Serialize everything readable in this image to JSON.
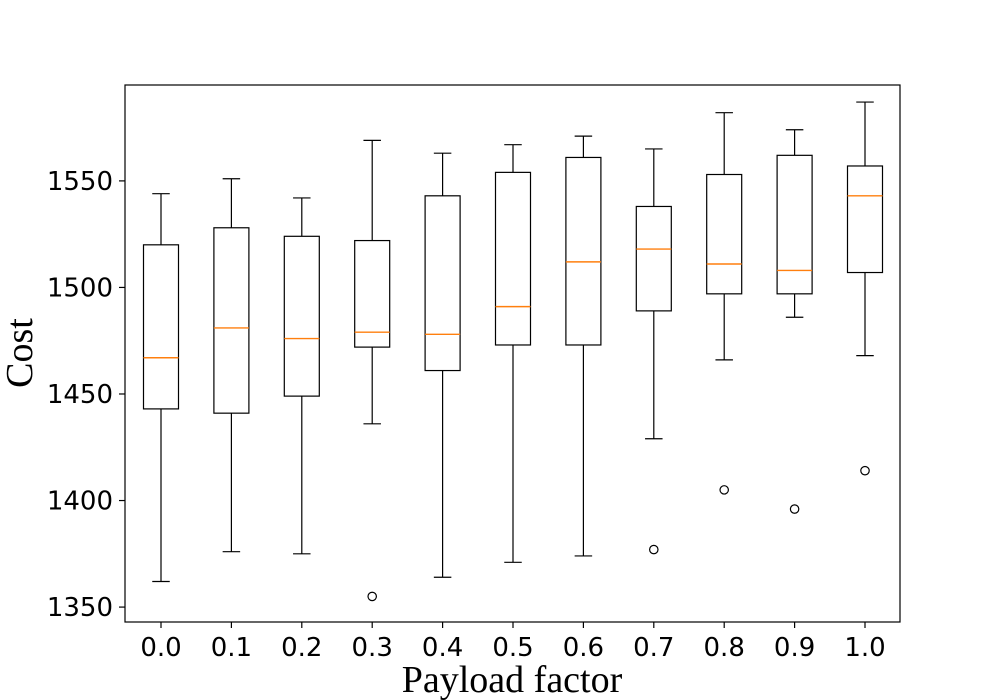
{
  "chart_data": {
    "type": "boxplot",
    "title": "",
    "xlabel": "Payload factor",
    "ylabel": "Cost",
    "ylim": [
      1343,
      1595
    ],
    "yticks": [
      1350,
      1400,
      1450,
      1500,
      1550
    ],
    "categories": [
      "0.0",
      "0.1",
      "0.2",
      "0.3",
      "0.4",
      "0.5",
      "0.6",
      "0.7",
      "0.8",
      "0.9",
      "1.0"
    ],
    "boxes": [
      {
        "whisker_low": 1362,
        "q1": 1443,
        "median": 1467,
        "q3": 1520,
        "whisker_high": 1544,
        "outliers": []
      },
      {
        "whisker_low": 1376,
        "q1": 1441,
        "median": 1481,
        "q3": 1528,
        "whisker_high": 1551,
        "outliers": []
      },
      {
        "whisker_low": 1375,
        "q1": 1449,
        "median": 1476,
        "q3": 1524,
        "whisker_high": 1542,
        "outliers": []
      },
      {
        "whisker_low": 1436,
        "q1": 1472,
        "median": 1479,
        "q3": 1522,
        "whisker_high": 1569,
        "outliers": [
          1355
        ]
      },
      {
        "whisker_low": 1364,
        "q1": 1461,
        "median": 1478,
        "q3": 1543,
        "whisker_high": 1563,
        "outliers": []
      },
      {
        "whisker_low": 1371,
        "q1": 1473,
        "median": 1491,
        "q3": 1554,
        "whisker_high": 1567,
        "outliers": []
      },
      {
        "whisker_low": 1374,
        "q1": 1473,
        "median": 1512,
        "q3": 1561,
        "whisker_high": 1571,
        "outliers": []
      },
      {
        "whisker_low": 1429,
        "q1": 1489,
        "median": 1518,
        "q3": 1538,
        "whisker_high": 1565,
        "outliers": [
          1377
        ]
      },
      {
        "whisker_low": 1466,
        "q1": 1497,
        "median": 1511,
        "q3": 1553,
        "whisker_high": 1582,
        "outliers": [
          1405
        ]
      },
      {
        "whisker_low": 1486,
        "q1": 1497,
        "median": 1508,
        "q3": 1562,
        "whisker_high": 1574,
        "outliers": [
          1396
        ]
      },
      {
        "whisker_low": 1468,
        "q1": 1507,
        "median": 1543,
        "q3": 1557,
        "whisker_high": 1587,
        "outliers": [
          1414
        ]
      }
    ],
    "colors": {
      "box": "#000000",
      "median": "#ff7f0e",
      "outlier": "#000000",
      "frame": "#000000"
    }
  }
}
